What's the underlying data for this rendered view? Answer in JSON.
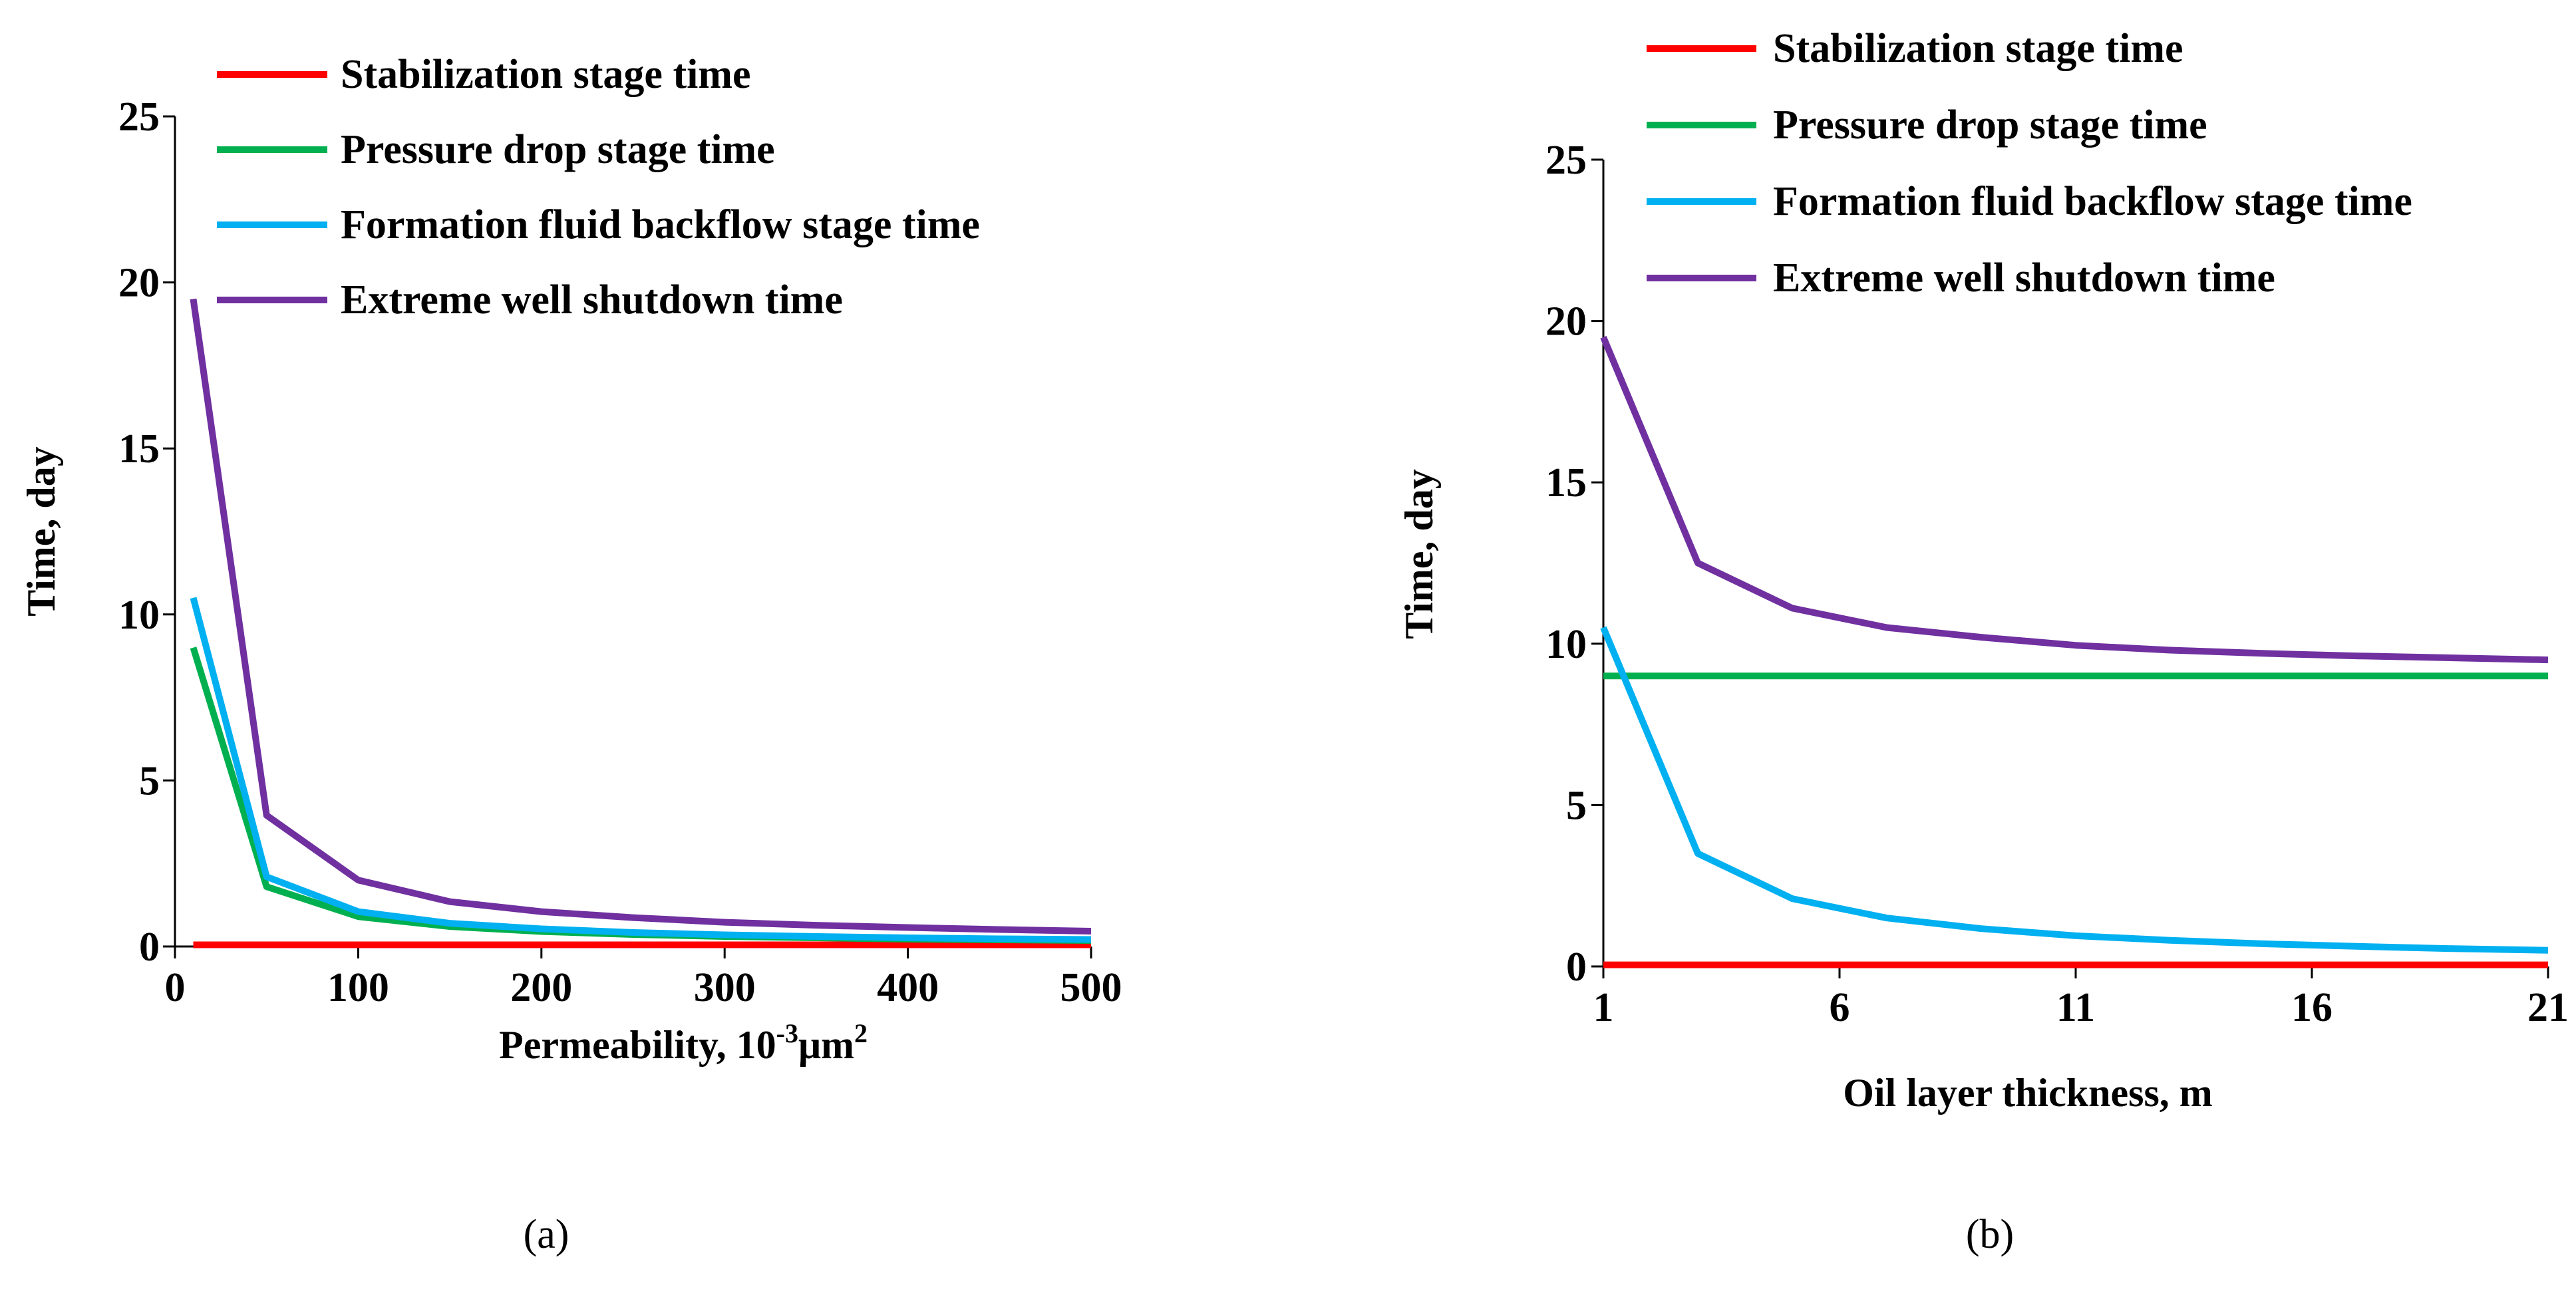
{
  "chart_data": [
    {
      "type": "line",
      "panel_label": "(a)",
      "xlabel": "Permeability, 10",
      "xlabel_sup": "-3",
      "xlabel_unit": "μm",
      "xlabel_unit_sup": "2",
      "ylabel": "Time, day",
      "xlim": [
        0,
        500
      ],
      "ylim": [
        0,
        25
      ],
      "x_ticks": [
        0,
        100,
        200,
        300,
        400,
        500
      ],
      "y_ticks": [
        0,
        5,
        10,
        15,
        20,
        25
      ],
      "legend_position": "top",
      "series": [
        {
          "name": "Stabilization stage time",
          "color": "#ff0000",
          "x": [
            10,
            50,
            100,
            150,
            200,
            250,
            300,
            350,
            400,
            450,
            500
          ],
          "y": [
            0.05,
            0.05,
            0.05,
            0.05,
            0.05,
            0.05,
            0.05,
            0.05,
            0.05,
            0.05,
            0.05
          ]
        },
        {
          "name": "Pressure drop stage time",
          "color": "#00b050",
          "x": [
            10,
            50,
            100,
            150,
            200,
            250,
            300,
            350,
            400,
            450,
            500
          ],
          "y": [
            9.0,
            1.8,
            0.9,
            0.6,
            0.45,
            0.36,
            0.3,
            0.26,
            0.22,
            0.2,
            0.18
          ]
        },
        {
          "name": "Formation fluid backflow stage time",
          "color": "#00b0f0",
          "x": [
            10,
            50,
            100,
            150,
            200,
            250,
            300,
            350,
            400,
            450,
            500
          ],
          "y": [
            10.5,
            2.1,
            1.05,
            0.7,
            0.53,
            0.42,
            0.35,
            0.3,
            0.26,
            0.23,
            0.21
          ]
        },
        {
          "name": "Extreme well shutdown time",
          "color": "#7030a0",
          "x": [
            10,
            50,
            100,
            150,
            200,
            250,
            300,
            350,
            400,
            450,
            500
          ],
          "y": [
            19.5,
            3.95,
            2.0,
            1.35,
            1.05,
            0.87,
            0.73,
            0.64,
            0.57,
            0.51,
            0.46
          ]
        }
      ]
    },
    {
      "type": "line",
      "panel_label": "(b)",
      "xlabel": "Oil layer thickness, m",
      "ylabel": "Time, day",
      "xlim": [
        1,
        21
      ],
      "ylim": [
        0,
        25
      ],
      "x_ticks": [
        1,
        6,
        11,
        16,
        21
      ],
      "y_ticks": [
        0,
        5,
        10,
        15,
        20,
        25
      ],
      "legend_position": "top",
      "series": [
        {
          "name": "Stabilization stage time",
          "color": "#ff0000",
          "x": [
            1,
            3,
            5,
            7,
            9,
            11,
            13,
            15,
            17,
            19,
            21
          ],
          "y": [
            0.05,
            0.05,
            0.05,
            0.05,
            0.05,
            0.05,
            0.05,
            0.05,
            0.05,
            0.05,
            0.05
          ]
        },
        {
          "name": "Pressure drop stage time",
          "color": "#00b050",
          "x": [
            1,
            3,
            5,
            7,
            9,
            11,
            13,
            15,
            17,
            19,
            21
          ],
          "y": [
            9.0,
            9.0,
            9.0,
            9.0,
            9.0,
            9.0,
            9.0,
            9.0,
            9.0,
            9.0,
            9.0
          ]
        },
        {
          "name": "Formation fluid backflow stage time",
          "color": "#00b0f0",
          "x": [
            1,
            3,
            5,
            7,
            9,
            11,
            13,
            15,
            17,
            19,
            21
          ],
          "y": [
            10.5,
            3.5,
            2.1,
            1.5,
            1.17,
            0.95,
            0.81,
            0.7,
            0.62,
            0.55,
            0.5
          ]
        },
        {
          "name": "Extreme well shutdown time",
          "color": "#7030a0",
          "x": [
            1,
            3,
            5,
            7,
            9,
            11,
            13,
            15,
            17,
            19,
            21
          ],
          "y": [
            19.5,
            12.5,
            11.1,
            10.5,
            10.2,
            9.95,
            9.8,
            9.7,
            9.62,
            9.56,
            9.5
          ]
        }
      ]
    }
  ]
}
